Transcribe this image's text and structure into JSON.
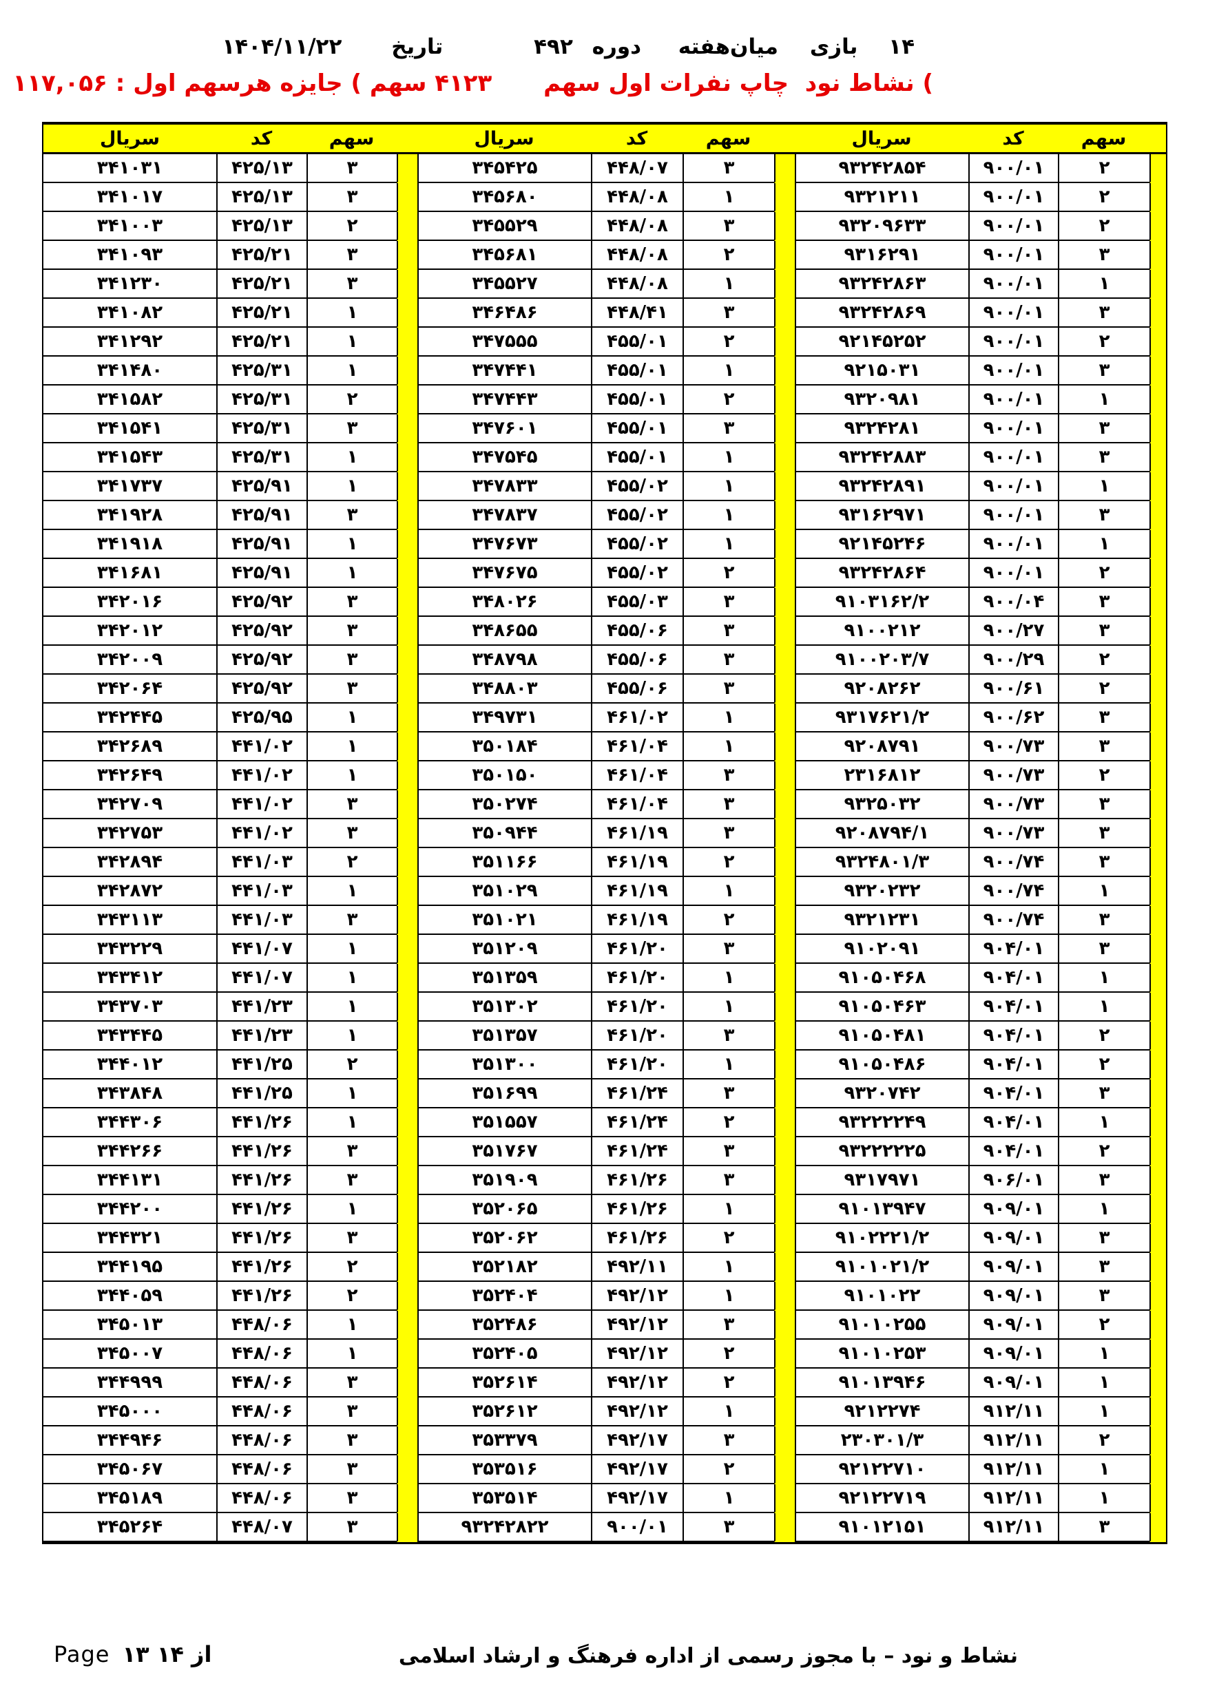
{
  "colors": {
    "header_accent": "#ffff00",
    "subtitle_red": "#e60000",
    "text": "#000000",
    "background": "#ffffff"
  },
  "header": {
    "items": [
      "۱۴",
      "بازی",
      "میان‌هفته",
      "دوره",
      "۴۹۲",
      "تاریخ",
      "۱۴۰۴/۱۱/۲۲"
    ]
  },
  "subheader": {
    "right_text": ") نشاط نود  چاپ نفرات اول سهم",
    "left_text": "۴۱۲۳ سهم ) جایزه هرسهم اول : ۱۱۷,۰۵۶"
  },
  "table": {
    "headers": {
      "serial": "سریال",
      "code": "کد",
      "share": "سهم"
    },
    "rows": [
      [
        "۲",
        "۹۰۰/۰۱",
        "۹۳۲۴۲۸۵۴",
        "۳",
        "۴۴۸/۰۷",
        "۳۴۵۴۲۵",
        "۳",
        "۴۲۵/۱۳",
        "۳۴۱۰۳۱"
      ],
      [
        "۲",
        "۹۰۰/۰۱",
        "۹۳۲۱۲۱۱",
        "۱",
        "۴۴۸/۰۸",
        "۳۴۵۶۸۰",
        "۳",
        "۴۲۵/۱۳",
        "۳۴۱۰۱۷"
      ],
      [
        "۲",
        "۹۰۰/۰۱",
        "۹۳۲۰۹۶۳۳",
        "۳",
        "۴۴۸/۰۸",
        "۳۴۵۵۲۹",
        "۲",
        "۴۲۵/۱۳",
        "۳۴۱۰۰۳"
      ],
      [
        "۳",
        "۹۰۰/۰۱",
        "۹۳۱۶۲۹۱",
        "۲",
        "۴۴۸/۰۸",
        "۳۴۵۶۸۱",
        "۳",
        "۴۲۵/۲۱",
        "۳۴۱۰۹۳"
      ],
      [
        "۱",
        "۹۰۰/۰۱",
        "۹۳۲۴۲۸۶۳",
        "۱",
        "۴۴۸/۰۸",
        "۳۴۵۵۲۷",
        "۳",
        "۴۲۵/۲۱",
        "۳۴۱۲۳۰"
      ],
      [
        "۳",
        "۹۰۰/۰۱",
        "۹۳۲۴۲۸۶۹",
        "۳",
        "۴۴۸/۴۱",
        "۳۴۶۴۸۶",
        "۱",
        "۴۲۵/۲۱",
        "۳۴۱۰۸۲"
      ],
      [
        "۲",
        "۹۰۰/۰۱",
        "۹۲۱۴۵۲۵۲",
        "۲",
        "۴۵۵/۰۱",
        "۳۴۷۵۵۵",
        "۱",
        "۴۲۵/۲۱",
        "۳۴۱۲۹۲"
      ],
      [
        "۳",
        "۹۰۰/۰۱",
        "۹۲۱۵۰۳۱",
        "۱",
        "۴۵۵/۰۱",
        "۳۴۷۴۴۱",
        "۱",
        "۴۲۵/۳۱",
        "۳۴۱۴۸۰"
      ],
      [
        "۱",
        "۹۰۰/۰۱",
        "۹۳۲۰۹۸۱",
        "۲",
        "۴۵۵/۰۱",
        "۳۴۷۴۴۳",
        "۲",
        "۴۲۵/۳۱",
        "۳۴۱۵۸۲"
      ],
      [
        "۳",
        "۹۰۰/۰۱",
        "۹۳۲۴۲۸۱",
        "۳",
        "۴۵۵/۰۱",
        "۳۴۷۶۰۱",
        "۳",
        "۴۲۵/۳۱",
        "۳۴۱۵۴۱"
      ],
      [
        "۳",
        "۹۰۰/۰۱",
        "۹۳۲۴۲۸۸۳",
        "۱",
        "۴۵۵/۰۱",
        "۳۴۷۵۴۵",
        "۱",
        "۴۲۵/۳۱",
        "۳۴۱۵۴۳"
      ],
      [
        "۱",
        "۹۰۰/۰۱",
        "۹۳۲۴۲۸۹۱",
        "۱",
        "۴۵۵/۰۲",
        "۳۴۷۸۳۳",
        "۱",
        "۴۲۵/۹۱",
        "۳۴۱۷۳۷"
      ],
      [
        "۳",
        "۹۰۰/۰۱",
        "۹۳۱۶۲۹۷۱",
        "۱",
        "۴۵۵/۰۲",
        "۳۴۷۸۳۷",
        "۳",
        "۴۲۵/۹۱",
        "۳۴۱۹۲۸"
      ],
      [
        "۱",
        "۹۰۰/۰۱",
        "۹۲۱۴۵۲۴۶",
        "۱",
        "۴۵۵/۰۲",
        "۳۴۷۶۷۳",
        "۱",
        "۴۲۵/۹۱",
        "۳۴۱۹۱۸"
      ],
      [
        "۲",
        "۹۰۰/۰۱",
        "۹۳۲۴۲۸۶۴",
        "۲",
        "۴۵۵/۰۲",
        "۳۴۷۶۷۵",
        "۱",
        "۴۲۵/۹۱",
        "۳۴۱۶۸۱"
      ],
      [
        "۳",
        "۹۰۰/۰۴",
        "۹۱۰۳۱۶۲/۲",
        "۳",
        "۴۵۵/۰۳",
        "۳۴۸۰۲۶",
        "۳",
        "۴۲۵/۹۲",
        "۳۴۲۰۱۶"
      ],
      [
        "۳",
        "۹۰۰/۲۷",
        "۹۱۰۰۲۱۲",
        "۳",
        "۴۵۵/۰۶",
        "۳۴۸۶۵۵",
        "۳",
        "۴۲۵/۹۲",
        "۳۴۲۰۱۲"
      ],
      [
        "۲",
        "۹۰۰/۲۹",
        "۹۱۰۰۲۰۳/۷",
        "۳",
        "۴۵۵/۰۶",
        "۳۴۸۷۹۸",
        "۳",
        "۴۲۵/۹۲",
        "۳۴۲۰۰۹"
      ],
      [
        "۲",
        "۹۰۰/۶۱",
        "۹۲۰۸۲۶۲",
        "۳",
        "۴۵۵/۰۶",
        "۳۴۸۸۰۳",
        "۳",
        "۴۲۵/۹۲",
        "۳۴۲۰۶۴"
      ],
      [
        "۳",
        "۹۰۰/۶۲",
        "۹۳۱۷۶۲۱/۲",
        "۱",
        "۴۶۱/۰۲",
        "۳۴۹۷۳۱",
        "۱",
        "۴۲۵/۹۵",
        "۳۴۲۴۴۵"
      ],
      [
        "۳",
        "۹۰۰/۷۳",
        "۹۲۰۸۷۹۱",
        "۱",
        "۴۶۱/۰۴",
        "۳۵۰۱۸۴",
        "۱",
        "۴۴۱/۰۲",
        "۳۴۲۶۸۹"
      ],
      [
        "۲",
        "۹۰۰/۷۳",
        "۲۳۱۶۸۱۲",
        "۳",
        "۴۶۱/۰۴",
        "۳۵۰۱۵۰",
        "۱",
        "۴۴۱/۰۲",
        "۳۴۲۶۴۹"
      ],
      [
        "۳",
        "۹۰۰/۷۳",
        "۹۳۲۵۰۳۲",
        "۳",
        "۴۶۱/۰۴",
        "۳۵۰۲۷۴",
        "۳",
        "۴۴۱/۰۲",
        "۳۴۲۷۰۹"
      ],
      [
        "۳",
        "۹۰۰/۷۳",
        "۹۲۰۸۷۹۴/۱",
        "۳",
        "۴۶۱/۱۹",
        "۳۵۰۹۴۴",
        "۳",
        "۴۴۱/۰۲",
        "۳۴۲۷۵۳"
      ],
      [
        "۳",
        "۹۰۰/۷۴",
        "۹۳۲۴۸۰۱/۳",
        "۲",
        "۴۶۱/۱۹",
        "۳۵۱۱۶۶",
        "۲",
        "۴۴۱/۰۳",
        "۳۴۲۸۹۴"
      ],
      [
        "۱",
        "۹۰۰/۷۴",
        "۹۳۲۰۲۳۲",
        "۱",
        "۴۶۱/۱۹",
        "۳۵۱۰۲۹",
        "۱",
        "۴۴۱/۰۳",
        "۳۴۲۸۷۲"
      ],
      [
        "۳",
        "۹۰۰/۷۴",
        "۹۳۲۱۲۳۱",
        "۲",
        "۴۶۱/۱۹",
        "۳۵۱۰۲۱",
        "۳",
        "۴۴۱/۰۳",
        "۳۴۳۱۱۳"
      ],
      [
        "۳",
        "۹۰۴/۰۱",
        "۹۱۰۲۰۹۱",
        "۳",
        "۴۶۱/۲۰",
        "۳۵۱۲۰۹",
        "۱",
        "۴۴۱/۰۷",
        "۳۴۳۲۲۹"
      ],
      [
        "۱",
        "۹۰۴/۰۱",
        "۹۱۰۵۰۴۶۸",
        "۱",
        "۴۶۱/۲۰",
        "۳۵۱۳۵۹",
        "۱",
        "۴۴۱/۰۷",
        "۳۴۳۴۱۲"
      ],
      [
        "۱",
        "۹۰۴/۰۱",
        "۹۱۰۵۰۴۶۳",
        "۱",
        "۴۶۱/۲۰",
        "۳۵۱۳۰۲",
        "۱",
        "۴۴۱/۲۳",
        "۳۴۳۷۰۳"
      ],
      [
        "۲",
        "۹۰۴/۰۱",
        "۹۱۰۵۰۴۸۱",
        "۳",
        "۴۶۱/۲۰",
        "۳۵۱۳۵۷",
        "۱",
        "۴۴۱/۲۳",
        "۳۴۳۴۴۵"
      ],
      [
        "۲",
        "۹۰۴/۰۱",
        "۹۱۰۵۰۴۸۶",
        "۱",
        "۴۶۱/۲۰",
        "۳۵۱۳۰۰",
        "۲",
        "۴۴۱/۲۵",
        "۳۴۴۰۱۲"
      ],
      [
        "۳",
        "۹۰۴/۰۱",
        "۹۳۲۰۷۴۲",
        "۳",
        "۴۶۱/۲۴",
        "۳۵۱۶۹۹",
        "۱",
        "۴۴۱/۲۵",
        "۳۴۳۸۴۸"
      ],
      [
        "۱",
        "۹۰۴/۰۱",
        "۹۳۲۲۲۲۴۹",
        "۲",
        "۴۶۱/۲۴",
        "۳۵۱۵۵۷",
        "۱",
        "۴۴۱/۲۶",
        "۳۴۴۳۰۶"
      ],
      [
        "۲",
        "۹۰۴/۰۱",
        "۹۳۲۲۲۲۲۵",
        "۳",
        "۴۶۱/۲۴",
        "۳۵۱۷۶۷",
        "۳",
        "۴۴۱/۲۶",
        "۳۴۴۲۶۶"
      ],
      [
        "۳",
        "۹۰۶/۰۱",
        "۹۳۱۷۹۷۱",
        "۳",
        "۴۶۱/۲۶",
        "۳۵۱۹۰۹",
        "۳",
        "۴۴۱/۲۶",
        "۳۴۴۱۳۱"
      ],
      [
        "۱",
        "۹۰۹/۰۱",
        "۹۱۰۱۳۹۴۷",
        "۱",
        "۴۶۱/۲۶",
        "۳۵۲۰۶۵",
        "۱",
        "۴۴۱/۲۶",
        "۳۴۴۲۰۰"
      ],
      [
        "۳",
        "۹۰۹/۰۱",
        "۹۱۰۲۲۲۱/۲",
        "۲",
        "۴۶۱/۲۶",
        "۳۵۲۰۶۲",
        "۳",
        "۴۴۱/۲۶",
        "۳۴۴۳۲۱"
      ],
      [
        "۳",
        "۹۰۹/۰۱",
        "۹۱۰۱۰۲۱/۲",
        "۱",
        "۴۹۲/۱۱",
        "۳۵۲۱۸۲",
        "۲",
        "۴۴۱/۲۶",
        "۳۴۴۱۹۵"
      ],
      [
        "۳",
        "۹۰۹/۰۱",
        "۹۱۰۱۰۲۲",
        "۱",
        "۴۹۲/۱۲",
        "۳۵۲۴۰۴",
        "۲",
        "۴۴۱/۲۶",
        "۳۴۴۰۵۹"
      ],
      [
        "۲",
        "۹۰۹/۰۱",
        "۹۱۰۱۰۲۵۵",
        "۳",
        "۴۹۲/۱۲",
        "۳۵۲۴۸۶",
        "۱",
        "۴۴۸/۰۶",
        "۳۴۵۰۱۳"
      ],
      [
        "۱",
        "۹۰۹/۰۱",
        "۹۱۰۱۰۲۵۳",
        "۲",
        "۴۹۲/۱۲",
        "۳۵۲۴۰۵",
        "۱",
        "۴۴۸/۰۶",
        "۳۴۵۰۰۷"
      ],
      [
        "۱",
        "۹۰۹/۰۱",
        "۹۱۰۱۳۹۴۶",
        "۲",
        "۴۹۲/۱۲",
        "۳۵۲۶۱۴",
        "۳",
        "۴۴۸/۰۶",
        "۳۴۴۹۹۹"
      ],
      [
        "۱",
        "۹۱۲/۱۱",
        "۹۲۱۲۲۷۴",
        "۱",
        "۴۹۲/۱۲",
        "۳۵۲۶۱۲",
        "۳",
        "۴۴۸/۰۶",
        "۳۴۵۰۰۰"
      ],
      [
        "۲",
        "۹۱۲/۱۱",
        "۲۳۰۳۰۱/۳",
        "۳",
        "۴۹۲/۱۷",
        "۳۵۳۳۷۹",
        "۳",
        "۴۴۸/۰۶",
        "۳۴۴۹۴۶"
      ],
      [
        "۱",
        "۹۱۲/۱۱",
        "۹۲۱۲۲۷۱۰",
        "۲",
        "۴۹۲/۱۷",
        "۳۵۳۵۱۶",
        "۳",
        "۴۴۸/۰۶",
        "۳۴۵۰۶۷"
      ],
      [
        "۱",
        "۹۱۲/۱۱",
        "۹۲۱۲۲۷۱۹",
        "۱",
        "۴۹۲/۱۷",
        "۳۵۳۵۱۴",
        "۳",
        "۴۴۸/۰۶",
        "۳۴۵۱۸۹"
      ],
      [
        "۳",
        "۹۱۲/۱۱",
        "۹۱۰۱۲۱۵۱",
        "۳",
        "۹۰۰/۰۱",
        "۹۳۲۴۲۸۲۲",
        "۳",
        "۴۴۸/۰۷",
        "۳۴۵۲۶۴"
      ]
    ]
  },
  "footer": {
    "right_text": "نشاط و نود – با مجوز رسمی از اداره فرهنگ و ارشاد اسلامی",
    "page_label": "Page",
    "page_info": "۱۳ از ۱۴"
  }
}
